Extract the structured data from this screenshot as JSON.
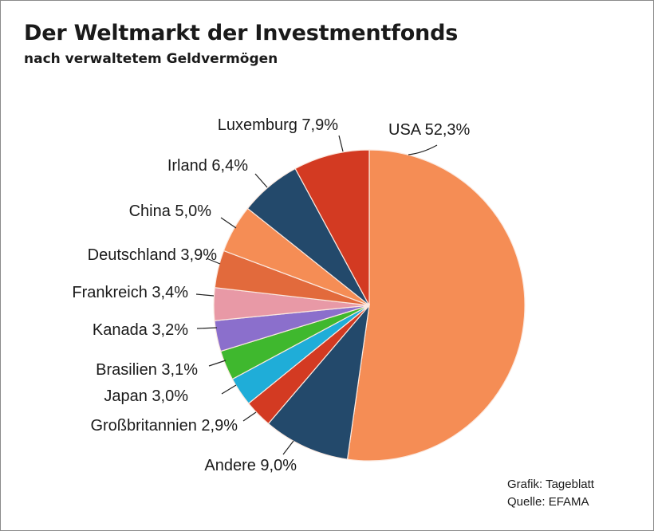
{
  "chart_data": {
    "type": "pie",
    "title": "Der Weltmarkt der Investmentfonds",
    "subtitle": "nach verwaltetem Geldvermögen",
    "slices": [
      {
        "label": "USA 52,3%",
        "value": 52.3,
        "color": "#f58d55"
      },
      {
        "label": "Andere 9,0%",
        "value": 9.0,
        "color": "#23496b"
      },
      {
        "label": "Großbritannien 2,9%",
        "value": 2.9,
        "color": "#d33a22"
      },
      {
        "label": "Japan 3,0%",
        "value": 3.0,
        "color": "#1fadd8"
      },
      {
        "label": "Brasilien 3,1%",
        "value": 3.1,
        "color": "#3fb82e"
      },
      {
        "label": "Kanada 3,2%",
        "value": 3.2,
        "color": "#8b6fcc"
      },
      {
        "label": "Frankreich 3,4%",
        "value": 3.4,
        "color": "#e899a6"
      },
      {
        "label": "Deutschland 3,9%",
        "value": 3.9,
        "color": "#e26a3c"
      },
      {
        "label": "China 5,0%",
        "value": 5.0,
        "color": "#f58d55"
      },
      {
        "label": "Irland 6,4%",
        "value": 6.4,
        "color": "#23496b"
      },
      {
        "label": "Luxemburg 7,9%",
        "value": 7.9,
        "color": "#d33a22"
      }
    ]
  },
  "source": {
    "credit": "Grafik: Tageblatt",
    "origin": "Quelle: EFAMA"
  }
}
